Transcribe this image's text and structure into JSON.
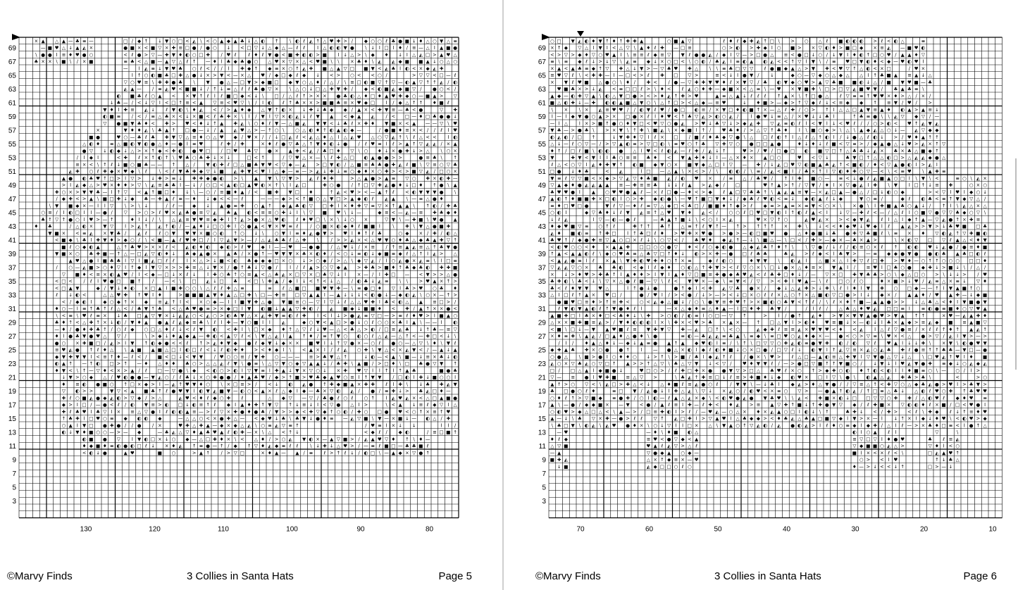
{
  "footer_copyright": "©Marvy Finds",
  "pattern_title": "3 Collies in Santa Hats",
  "pages": [
    {
      "id": "page5",
      "page_label": "Page 5",
      "row_labels": [
        "69",
        "67",
        "65",
        "63",
        "61",
        "59",
        "57",
        "55",
        "53",
        "51",
        "49",
        "47",
        "45",
        "43",
        "41",
        "39",
        "37",
        "35",
        "33",
        "31",
        "29",
        "27",
        "25",
        "23",
        "21",
        "19",
        "17",
        "15",
        "13",
        "11",
        "9",
        "7",
        "5",
        "3"
      ],
      "col_labels": [
        "130",
        "120",
        "110",
        "100",
        "90",
        "80"
      ],
      "markers": [
        "row-marker-left"
      ]
    },
    {
      "id": "page6",
      "page_label": "Page 6",
      "row_labels": [
        "69",
        "67",
        "65",
        "63",
        "61",
        "59",
        "57",
        "55",
        "53",
        "51",
        "49",
        "47",
        "45",
        "43",
        "41",
        "39",
        "37",
        "35",
        "33",
        "31",
        "29",
        "27",
        "25",
        "23",
        "21",
        "19",
        "17",
        "15",
        "13",
        "11",
        "9",
        "7",
        "5",
        "3"
      ],
      "col_labels": [
        "70",
        "60",
        "50",
        "40",
        "30",
        "20",
        "10"
      ],
      "markers": [
        "row-marker-left",
        "col-marker-top"
      ]
    }
  ],
  "symbols": [
    "●",
    "○",
    "◆",
    "▲",
    "▼",
    "■",
    "□",
    "♥",
    "♣",
    "♦",
    "✚",
    "×",
    "\\",
    "/",
    "↑",
    "↓",
    "<",
    ">",
    "—",
    "I",
    "ℓ",
    "◐",
    "◭",
    "▽",
    "△",
    "≡"
  ],
  "colors": {
    "grid": "#000000",
    "symbol": "#000000",
    "background": "#ffffff",
    "divider": "#cfcfcf"
  }
}
